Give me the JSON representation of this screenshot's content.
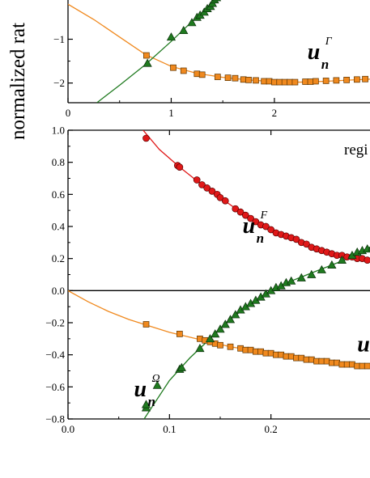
{
  "figure": {
    "ylabel": "normalized rat",
    "region_label": "regi"
  },
  "chart_data": [
    {
      "type": "scatter",
      "panel": "top",
      "xlim": [
        0,
        2.95
      ],
      "ylim": [
        -2.45,
        0.45
      ],
      "xticks": [
        0,
        1,
        2
      ],
      "xtick_labels": [
        "0",
        "1",
        "2"
      ],
      "yticks": [
        -2,
        -1
      ],
      "ytick_labels": [
        "−2",
        "−1"
      ],
      "grid": false,
      "colors": {
        "orange": "#f0891e",
        "green": "#1f7a1f",
        "red": "#e01818"
      },
      "series": [
        {
          "marker": "square",
          "color": "orange",
          "points": [
            [
              0.76,
              -1.37
            ],
            [
              1.02,
              -1.65
            ],
            [
              1.12,
              -1.72
            ],
            [
              1.25,
              -1.79
            ],
            [
              1.3,
              -1.81
            ],
            [
              1.45,
              -1.86
            ],
            [
              1.55,
              -1.88
            ],
            [
              1.62,
              -1.89
            ],
            [
              1.7,
              -1.92
            ],
            [
              1.75,
              -1.93
            ],
            [
              1.82,
              -1.94
            ],
            [
              1.9,
              -1.96
            ],
            [
              1.95,
              -1.96
            ],
            [
              2.0,
              -1.98
            ],
            [
              2.05,
              -1.98
            ],
            [
              2.1,
              -1.98
            ],
            [
              2.15,
              -1.98
            ],
            [
              2.2,
              -1.98
            ],
            [
              2.3,
              -1.97
            ],
            [
              2.35,
              -1.97
            ],
            [
              2.4,
              -1.96
            ],
            [
              2.5,
              -1.95
            ],
            [
              2.6,
              -1.94
            ],
            [
              2.7,
              -1.93
            ],
            [
              2.8,
              -1.92
            ],
            [
              2.88,
              -1.91
            ]
          ],
          "curve": [
            [
              0,
              -0.2
            ],
            [
              0.25,
              -0.55
            ],
            [
              0.5,
              -0.95
            ],
            [
              0.75,
              -1.35
            ],
            [
              1.0,
              -1.62
            ],
            [
              1.25,
              -1.78
            ],
            [
              1.5,
              -1.87
            ],
            [
              1.75,
              -1.93
            ],
            [
              2.0,
              -1.97
            ],
            [
              2.25,
              -1.98
            ],
            [
              2.5,
              -1.96
            ],
            [
              2.75,
              -1.93
            ],
            [
              2.95,
              -1.91
            ]
          ]
        },
        {
          "marker": "triangle",
          "color": "green",
          "points": [
            [
              0.77,
              -1.55
            ],
            [
              1.0,
              -0.95
            ],
            [
              1.12,
              -0.8
            ],
            [
              1.2,
              -0.62
            ],
            [
              1.25,
              -0.5
            ],
            [
              1.28,
              -0.45
            ],
            [
              1.32,
              -0.38
            ],
            [
              1.35,
              -0.3
            ],
            [
              1.38,
              -0.25
            ],
            [
              1.4,
              -0.18
            ],
            [
              1.42,
              -0.1
            ],
            [
              1.44,
              -0.05
            ],
            [
              1.48,
              0.05
            ],
            [
              1.5,
              0.12
            ],
            [
              1.52,
              0.18
            ]
          ],
          "curve": [
            [
              0.28,
              -2.45
            ],
            [
              0.5,
              -2.05
            ],
            [
              0.75,
              -1.58
            ],
            [
              1.0,
              -1.05
            ],
            [
              1.2,
              -0.6
            ],
            [
              1.4,
              -0.18
            ],
            [
              1.6,
              0.2
            ],
            [
              1.8,
              0.45
            ]
          ]
        }
      ],
      "annotations": [
        {
          "main": "u",
          "sub": "n",
          "sup": "Γ",
          "x": 2.32,
          "y": -1.45
        }
      ]
    },
    {
      "type": "scatter",
      "panel": "bottom",
      "xlim": [
        0,
        0.3
      ],
      "ylim": [
        -0.8,
        1.0
      ],
      "xticks": [
        0.0,
        0.1,
        0.2
      ],
      "xtick_labels": [
        "0.0",
        "0.1",
        "0.2"
      ],
      "yticks": [
        -0.8,
        -0.6,
        -0.4,
        -0.2,
        0.0,
        0.2,
        0.4,
        0.6,
        0.8,
        1.0
      ],
      "ytick_labels": [
        "−0.8",
        "−0.6",
        "−0.4",
        "−0.2",
        "0.0",
        "0.2",
        "0.4",
        "0.6",
        "0.8",
        "1.0"
      ],
      "grid": false,
      "zero_line": true,
      "colors": {
        "orange": "#f0891e",
        "green": "#1f7a1f",
        "red": "#e01818"
      },
      "series": [
        {
          "marker": "circle",
          "color": "red",
          "points": [
            [
              0.077,
              0.95
            ],
            [
              0.108,
              0.78
            ],
            [
              0.11,
              0.77
            ],
            [
              0.127,
              0.69
            ],
            [
              0.132,
              0.66
            ],
            [
              0.137,
              0.64
            ],
            [
              0.142,
              0.62
            ],
            [
              0.147,
              0.6
            ],
            [
              0.15,
              0.58
            ],
            [
              0.155,
              0.56
            ],
            [
              0.165,
              0.51
            ],
            [
              0.17,
              0.49
            ],
            [
              0.175,
              0.47
            ],
            [
              0.18,
              0.45
            ],
            [
              0.185,
              0.43
            ],
            [
              0.19,
              0.41
            ],
            [
              0.195,
              0.4
            ],
            [
              0.2,
              0.38
            ],
            [
              0.205,
              0.36
            ],
            [
              0.21,
              0.35
            ],
            [
              0.215,
              0.34
            ],
            [
              0.22,
              0.33
            ],
            [
              0.225,
              0.32
            ],
            [
              0.23,
              0.3
            ],
            [
              0.235,
              0.29
            ],
            [
              0.24,
              0.27
            ],
            [
              0.245,
              0.26
            ],
            [
              0.25,
              0.25
            ],
            [
              0.255,
              0.24
            ],
            [
              0.26,
              0.23
            ],
            [
              0.265,
              0.22
            ],
            [
              0.27,
              0.22
            ],
            [
              0.275,
              0.21
            ],
            [
              0.28,
              0.21
            ],
            [
              0.285,
              0.2
            ],
            [
              0.29,
              0.2
            ],
            [
              0.295,
              0.19
            ]
          ],
          "curve": [
            [
              0.074,
              1.0
            ],
            [
              0.09,
              0.88
            ],
            [
              0.11,
              0.77
            ],
            [
              0.13,
              0.67
            ],
            [
              0.15,
              0.58
            ],
            [
              0.17,
              0.49
            ],
            [
              0.19,
              0.41
            ],
            [
              0.21,
              0.35
            ],
            [
              0.23,
              0.3
            ],
            [
              0.25,
              0.25
            ],
            [
              0.27,
              0.22
            ],
            [
              0.29,
              0.2
            ],
            [
              0.3,
              0.19
            ]
          ]
        },
        {
          "marker": "square",
          "color": "orange",
          "points": [
            [
              0.077,
              -0.21
            ],
            [
              0.11,
              -0.27
            ],
            [
              0.13,
              -0.3
            ],
            [
              0.135,
              -0.31
            ],
            [
              0.14,
              -0.32
            ],
            [
              0.145,
              -0.33
            ],
            [
              0.15,
              -0.34
            ],
            [
              0.16,
              -0.35
            ],
            [
              0.17,
              -0.36
            ],
            [
              0.175,
              -0.37
            ],
            [
              0.18,
              -0.37
            ],
            [
              0.185,
              -0.38
            ],
            [
              0.19,
              -0.38
            ],
            [
              0.195,
              -0.39
            ],
            [
              0.2,
              -0.39
            ],
            [
              0.205,
              -0.4
            ],
            [
              0.21,
              -0.4
            ],
            [
              0.215,
              -0.41
            ],
            [
              0.22,
              -0.41
            ],
            [
              0.225,
              -0.42
            ],
            [
              0.23,
              -0.42
            ],
            [
              0.235,
              -0.43
            ],
            [
              0.24,
              -0.43
            ],
            [
              0.245,
              -0.44
            ],
            [
              0.25,
              -0.44
            ],
            [
              0.255,
              -0.44
            ],
            [
              0.26,
              -0.45
            ],
            [
              0.265,
              -0.45
            ],
            [
              0.27,
              -0.46
            ],
            [
              0.275,
              -0.46
            ],
            [
              0.28,
              -0.46
            ],
            [
              0.285,
              -0.47
            ],
            [
              0.29,
              -0.47
            ],
            [
              0.295,
              -0.47
            ]
          ],
          "curve": [
            [
              0.0,
              0.0
            ],
            [
              0.02,
              -0.07
            ],
            [
              0.04,
              -0.13
            ],
            [
              0.06,
              -0.18
            ],
            [
              0.08,
              -0.22
            ],
            [
              0.1,
              -0.26
            ],
            [
              0.12,
              -0.29
            ],
            [
              0.14,
              -0.32
            ],
            [
              0.16,
              -0.35
            ],
            [
              0.18,
              -0.37
            ],
            [
              0.2,
              -0.39
            ],
            [
              0.22,
              -0.41
            ],
            [
              0.24,
              -0.43
            ],
            [
              0.26,
              -0.45
            ],
            [
              0.28,
              -0.46
            ],
            [
              0.3,
              -0.48
            ]
          ]
        },
        {
          "marker": "triangle",
          "color": "green",
          "points": [
            [
              0.077,
              -0.73
            ],
            [
              0.077,
              -0.71
            ],
            [
              0.088,
              -0.59
            ],
            [
              0.11,
              -0.49
            ],
            [
              0.112,
              -0.48
            ],
            [
              0.13,
              -0.36
            ],
            [
              0.14,
              -0.3
            ],
            [
              0.145,
              -0.27
            ],
            [
              0.15,
              -0.24
            ],
            [
              0.155,
              -0.21
            ],
            [
              0.16,
              -0.18
            ],
            [
              0.165,
              -0.15
            ],
            [
              0.17,
              -0.12
            ],
            [
              0.175,
              -0.1
            ],
            [
              0.18,
              -0.08
            ],
            [
              0.185,
              -0.06
            ],
            [
              0.19,
              -0.04
            ],
            [
              0.195,
              -0.02
            ],
            [
              0.2,
              0.0
            ],
            [
              0.205,
              0.02
            ],
            [
              0.21,
              0.03
            ],
            [
              0.215,
              0.05
            ],
            [
              0.22,
              0.06
            ],
            [
              0.23,
              0.08
            ],
            [
              0.24,
              0.1
            ],
            [
              0.25,
              0.13
            ],
            [
              0.26,
              0.16
            ],
            [
              0.27,
              0.19
            ],
            [
              0.28,
              0.22
            ],
            [
              0.285,
              0.24
            ],
            [
              0.29,
              0.25
            ],
            [
              0.295,
              0.26
            ],
            [
              0.3,
              0.27
            ]
          ],
          "curve": [
            [
              0.075,
              -0.8
            ],
            [
              0.1,
              -0.56
            ],
            [
              0.12,
              -0.42
            ],
            [
              0.14,
              -0.3
            ],
            [
              0.16,
              -0.18
            ],
            [
              0.18,
              -0.08
            ],
            [
              0.2,
              0.0
            ],
            [
              0.22,
              0.06
            ],
            [
              0.24,
              0.11
            ],
            [
              0.26,
              0.16
            ],
            [
              0.28,
              0.21
            ],
            [
              0.3,
              0.28
            ]
          ]
        }
      ],
      "annotations": [
        {
          "main": "u",
          "sub": "n",
          "sup": "F",
          "x": 0.172,
          "y": 0.36
        },
        {
          "main": "u",
          "sub": "n",
          "sup": "Ω",
          "x": 0.065,
          "y": -0.66
        },
        {
          "main": "u",
          "sub": "n",
          "sup": "",
          "x": 0.285,
          "y": -0.38
        }
      ]
    }
  ]
}
